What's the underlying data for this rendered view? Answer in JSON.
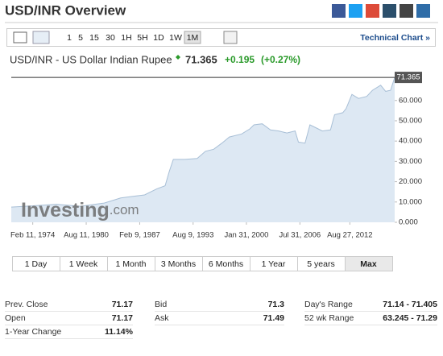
{
  "header": {
    "title": "USD/INR Overview"
  },
  "toolbar": {
    "periods": [
      "1",
      "5",
      "15",
      "30",
      "1H",
      "5H",
      "1D",
      "1W",
      "1M"
    ],
    "technical_chart": "Technical Chart »"
  },
  "quote": {
    "name": "USD/INR - US Dollar Indian Rupee",
    "change": "+0.195",
    "change_pct": "(+0.27%)"
  },
  "chart_data": {
    "type": "area",
    "last": 71.365,
    "watermark": [
      "Investing",
      ".com"
    ],
    "x": [
      1971.5,
      1974.0,
      1977.0,
      1979.9,
      1982.8,
      1984.8,
      1986.3,
      1987.7,
      1989.2,
      1990.2,
      1990.7,
      1991.2,
      1992.6,
      1994.1,
      1995.1,
      1996.1,
      1997.1,
      1998.0,
      1999.5,
      2000.5,
      2001.0,
      2002.0,
      2003.0,
      2004.0,
      2005.0,
      2006.0,
      2006.4,
      2007.2,
      2007.8,
      2008.8,
      2009.3,
      2010.3,
      2010.8,
      2011.8,
      2012.2,
      2012.9,
      2013.7,
      2014.7,
      2015.4,
      2016.4,
      2017.0,
      2017.6,
      2018.1
    ],
    "values": [
      7.5,
      8.1,
      8.9,
      7.9,
      9.5,
      12.0,
      12.8,
      13.5,
      16.5,
      18,
      25,
      31,
      31,
      31.4,
      35,
      36,
      39,
      42,
      43.5,
      46,
      48,
      48.5,
      45.5,
      45,
      44,
      45,
      39.5,
      39,
      48,
      46,
      45,
      45.5,
      53,
      54,
      56,
      63,
      61,
      62,
      65,
      67.5,
      64.5,
      65,
      71.365
    ],
    "color": "#dde8f3",
    "line_color": "#a8bfd6",
    "xlim": [
      1971.5,
      2018.1
    ],
    "ylim": [
      0,
      72
    ],
    "xticks": [
      {
        "value": 1974.11,
        "label": "Feb 11, 1974"
      },
      {
        "value": 1980.61,
        "label": "Aug 11, 1980"
      },
      {
        "value": 1987.11,
        "label": "Feb 9, 1987"
      },
      {
        "value": 1993.6,
        "label": "Aug 9, 1993"
      },
      {
        "value": 2000.08,
        "label": "Jan 31, 2000"
      },
      {
        "value": 2006.58,
        "label": "Jul 31, 2006"
      },
      {
        "value": 2012.65,
        "label": "Aug 27, 2012"
      }
    ],
    "yticks": [
      {
        "value": 0,
        "label": "0.000"
      },
      {
        "value": 10,
        "label": "10.000"
      },
      {
        "value": 20,
        "label": "20.000"
      },
      {
        "value": 30,
        "label": "30.000"
      },
      {
        "value": 40,
        "label": "40.000"
      },
      {
        "value": 50,
        "label": "50.000"
      },
      {
        "value": 60,
        "label": "60.000"
      }
    ]
  },
  "ranges": [
    "1 Day",
    "1 Week",
    "1 Month",
    "3 Months",
    "6 Months",
    "1 Year",
    "5 years",
    "Max"
  ],
  "stats": [
    [
      "Prev. Close",
      "71.17",
      "Bid",
      "71.3",
      "Day's Range",
      "71.14 - 71.405"
    ],
    [
      "Open",
      "71.17",
      "Ask",
      "71.49",
      "52 wk Range",
      "63.245 - 71.29"
    ],
    [
      "1-Year Change",
      "11.14%"
    ]
  ]
}
